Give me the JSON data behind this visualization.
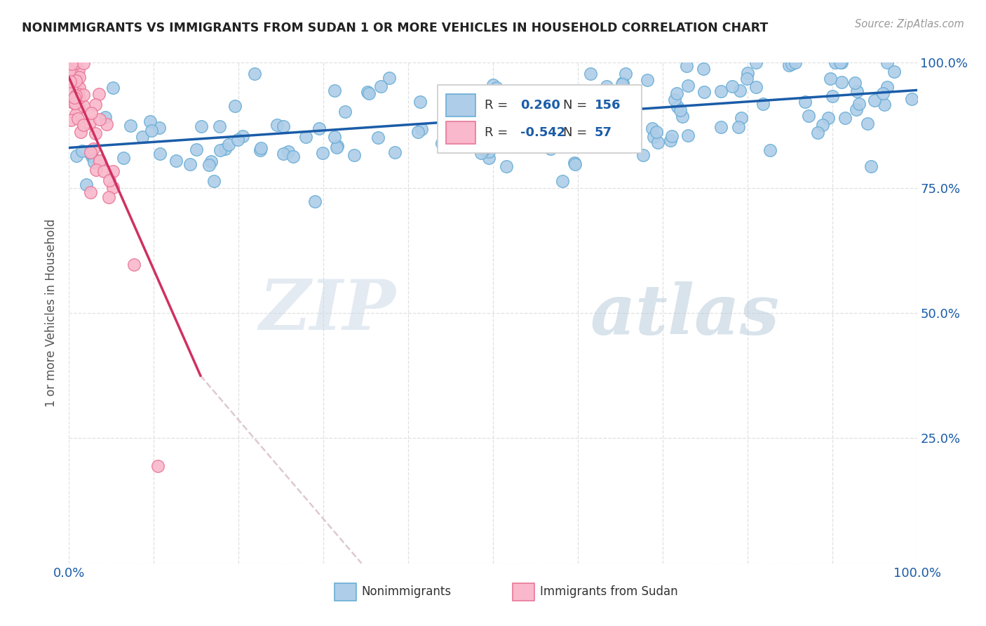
{
  "title": "NONIMMIGRANTS VS IMMIGRANTS FROM SUDAN 1 OR MORE VEHICLES IN HOUSEHOLD CORRELATION CHART",
  "source": "Source: ZipAtlas.com",
  "ylabel": "1 or more Vehicles in Household",
  "legend_nonimm_label": "Nonimmigrants",
  "legend_imm_label": "Immigrants from Sudan",
  "nonimm_R": 0.26,
  "nonimm_N": 156,
  "imm_R": -0.542,
  "imm_N": 57,
  "nonimm_color": "#aecde8",
  "nonimm_edge_color": "#6aaed6",
  "imm_color": "#f9b8cb",
  "imm_edge_color": "#e87898",
  "trend_nonimm_color": "#1a5ca8",
  "trend_imm_color": "#d03060",
  "trend_imm_ext_color": "#d8c0c8",
  "watermark_zip_color": "#ccd8e8",
  "watermark_atlas_color": "#b8cce0",
  "title_color": "#222222",
  "axis_label_color": "#1a5ca8",
  "grid_color": "#e0e0e0",
  "background_color": "#ffffff",
  "xlim": [
    0.0,
    1.0
  ],
  "ylim": [
    0.0,
    1.0
  ],
  "xaxis_ticks": [
    0.0,
    0.1,
    0.2,
    0.3,
    0.4,
    0.5,
    0.6,
    0.7,
    0.8,
    0.9,
    1.0
  ],
  "yaxis_ticks": [
    0.0,
    0.25,
    0.5,
    0.75,
    1.0
  ],
  "nonimm_trend_y0": 0.83,
  "nonimm_trend_y1": 0.945,
  "imm_trend_y0": 0.97,
  "imm_trend_x_solid_end": 0.155,
  "imm_trend_y_solid_end": 0.375,
  "imm_trend_x_dash_end": 0.345,
  "imm_trend_y_dash_end": 0.0
}
